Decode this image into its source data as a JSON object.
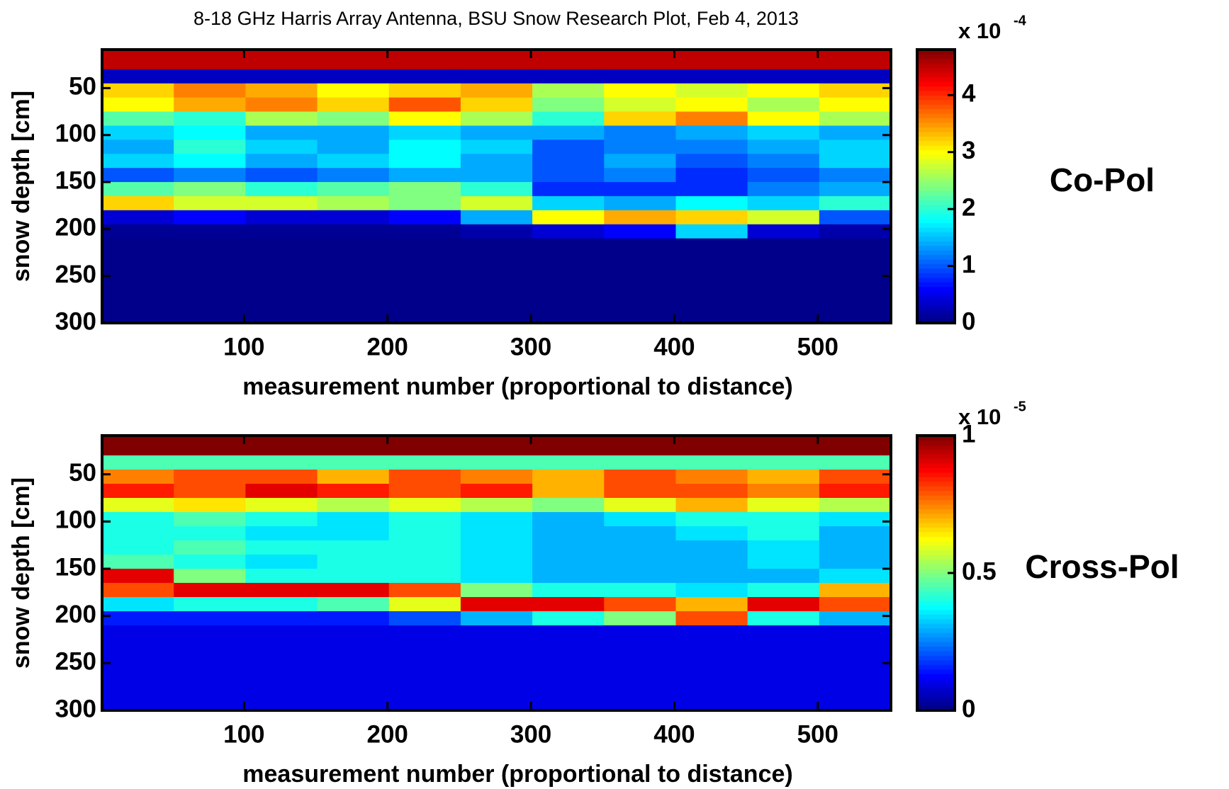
{
  "chart_data": [
    {
      "type": "heatmap",
      "title": "8-18 GHz Harris Array  Antenna, BSU Snow Research Plot, Feb 4, 2013",
      "xlabel": "measurement number (proportional to distance)",
      "ylabel": "snow depth [cm]",
      "side_label": "Co-Pol",
      "colorbar_multiplier": "x 10",
      "colorbar_exponent": "-4",
      "colormap": "jet",
      "clim": [
        0,
        4.8
      ],
      "colorbar_ticks": [
        0,
        1,
        2,
        3,
        4
      ],
      "xlim": [
        1,
        551
      ],
      "xticks": [
        100,
        200,
        300,
        400,
        500
      ],
      "ylim": [
        9,
        300
      ],
      "yticks": [
        50,
        100,
        150,
        200,
        250,
        300
      ],
      "y_reversed": true,
      "x_edges": [
        1,
        51,
        101,
        151,
        201,
        251,
        301,
        351,
        401,
        451,
        501,
        551
      ],
      "y_edges": [
        9,
        30,
        45,
        60,
        75,
        90,
        105,
        120,
        135,
        150,
        165,
        180,
        195,
        210,
        225,
        240,
        255,
        270,
        285,
        300
      ],
      "z": [
        [
          4.5,
          4.5,
          4.5,
          4.5,
          4.5,
          4.5,
          4.5,
          4.5,
          4.5,
          4.5,
          4.5
        ],
        [
          0.3,
          0.3,
          0.3,
          0.3,
          0.3,
          0.3,
          0.3,
          0.3,
          0.3,
          0.3,
          0.3
        ],
        [
          3.2,
          3.6,
          3.4,
          3.0,
          3.2,
          3.4,
          2.6,
          3.0,
          2.8,
          3.0,
          3.2
        ],
        [
          3.0,
          3.4,
          3.6,
          3.2,
          3.8,
          3.2,
          2.4,
          2.8,
          3.0,
          2.6,
          3.0
        ],
        [
          2.2,
          2.0,
          2.6,
          2.4,
          3.0,
          2.6,
          2.0,
          3.2,
          3.6,
          3.0,
          2.6
        ],
        [
          1.6,
          1.8,
          1.4,
          1.4,
          1.6,
          1.4,
          1.4,
          1.2,
          1.4,
          1.6,
          1.4
        ],
        [
          1.4,
          2.0,
          1.6,
          1.4,
          1.8,
          1.6,
          1.0,
          1.2,
          1.2,
          1.4,
          1.6
        ],
        [
          1.6,
          1.8,
          1.4,
          1.6,
          1.8,
          1.4,
          1.0,
          1.4,
          1.0,
          1.2,
          1.6
        ],
        [
          1.0,
          1.2,
          1.0,
          1.2,
          1.4,
          1.4,
          1.0,
          1.2,
          0.8,
          1.0,
          1.2
        ],
        [
          2.2,
          2.4,
          2.0,
          2.2,
          2.4,
          2.0,
          0.8,
          0.8,
          0.8,
          1.2,
          1.4
        ],
        [
          3.2,
          2.8,
          2.8,
          2.6,
          2.4,
          2.8,
          1.6,
          1.4,
          1.8,
          1.6,
          2.0
        ],
        [
          0.4,
          0.6,
          0.4,
          0.4,
          0.6,
          1.4,
          3.0,
          3.4,
          3.2,
          2.8,
          1.0
        ],
        [
          0.1,
          0.1,
          0.1,
          0.1,
          0.1,
          0.2,
          0.4,
          0.6,
          1.6,
          0.4,
          0.2
        ],
        [
          0.05,
          0.05,
          0.05,
          0.05,
          0.05,
          0.05,
          0.05,
          0.05,
          0.05,
          0.05,
          0.05
        ],
        [
          0.05,
          0.05,
          0.05,
          0.05,
          0.05,
          0.05,
          0.05,
          0.05,
          0.05,
          0.05,
          0.05
        ],
        [
          0.05,
          0.05,
          0.05,
          0.05,
          0.05,
          0.05,
          0.05,
          0.05,
          0.05,
          0.05,
          0.05
        ],
        [
          0.05,
          0.05,
          0.05,
          0.05,
          0.05,
          0.05,
          0.05,
          0.05,
          0.05,
          0.05,
          0.05
        ],
        [
          0.05,
          0.05,
          0.05,
          0.05,
          0.05,
          0.05,
          0.05,
          0.05,
          0.05,
          0.05,
          0.05
        ],
        [
          0.05,
          0.05,
          0.05,
          0.05,
          0.05,
          0.05,
          0.05,
          0.05,
          0.05,
          0.05,
          0.05
        ]
      ]
    },
    {
      "type": "heatmap",
      "xlabel": "measurement number (proportional to distance)",
      "ylabel": "snow depth [cm]",
      "side_label": "Cross-Pol",
      "colorbar_multiplier": "x 10",
      "colorbar_exponent": "-5",
      "colormap": "jet",
      "clim": [
        0,
        1
      ],
      "colorbar_ticks": [
        0,
        0.5,
        1
      ],
      "xlim": [
        1,
        551
      ],
      "xticks": [
        100,
        200,
        300,
        400,
        500
      ],
      "ylim": [
        9,
        300
      ],
      "yticks": [
        50,
        100,
        150,
        200,
        250,
        300
      ],
      "y_reversed": true,
      "x_edges": [
        1,
        51,
        101,
        151,
        201,
        251,
        301,
        351,
        401,
        451,
        501,
        551
      ],
      "y_edges": [
        9,
        30,
        45,
        60,
        75,
        90,
        105,
        120,
        135,
        150,
        165,
        180,
        195,
        210,
        225,
        240,
        255,
        270,
        285,
        300
      ],
      "z": [
        [
          1,
          1,
          1,
          1,
          1,
          1,
          1,
          1,
          1,
          1,
          1
        ],
        [
          0.45,
          0.45,
          0.45,
          0.45,
          0.45,
          0.45,
          0.45,
          0.45,
          0.45,
          0.45,
          0.45
        ],
        [
          0.75,
          0.8,
          0.8,
          0.7,
          0.8,
          0.75,
          0.7,
          0.8,
          0.75,
          0.7,
          0.8
        ],
        [
          0.85,
          0.8,
          0.9,
          0.85,
          0.8,
          0.85,
          0.7,
          0.8,
          0.8,
          0.75,
          0.85
        ],
        [
          0.6,
          0.65,
          0.6,
          0.55,
          0.6,
          0.55,
          0.5,
          0.6,
          0.7,
          0.6,
          0.55
        ],
        [
          0.4,
          0.45,
          0.4,
          0.35,
          0.4,
          0.35,
          0.3,
          0.35,
          0.4,
          0.4,
          0.35
        ],
        [
          0.4,
          0.4,
          0.35,
          0.35,
          0.4,
          0.35,
          0.3,
          0.3,
          0.35,
          0.4,
          0.3
        ],
        [
          0.4,
          0.45,
          0.4,
          0.4,
          0.4,
          0.35,
          0.3,
          0.3,
          0.3,
          0.35,
          0.3
        ],
        [
          0.45,
          0.4,
          0.35,
          0.4,
          0.4,
          0.35,
          0.3,
          0.3,
          0.3,
          0.35,
          0.3
        ],
        [
          0.9,
          0.5,
          0.4,
          0.4,
          0.4,
          0.35,
          0.3,
          0.3,
          0.3,
          0.3,
          0.35
        ],
        [
          0.8,
          0.9,
          0.9,
          0.9,
          0.8,
          0.5,
          0.4,
          0.4,
          0.35,
          0.4,
          0.7
        ],
        [
          0.35,
          0.4,
          0.4,
          0.45,
          0.6,
          0.9,
          0.9,
          0.8,
          0.7,
          0.9,
          0.8
        ],
        [
          0.15,
          0.15,
          0.15,
          0.15,
          0.2,
          0.3,
          0.4,
          0.5,
          0.8,
          0.4,
          0.3
        ],
        [
          0.1,
          0.1,
          0.1,
          0.1,
          0.1,
          0.1,
          0.1,
          0.1,
          0.1,
          0.1,
          0.1
        ],
        [
          0.1,
          0.1,
          0.1,
          0.1,
          0.1,
          0.1,
          0.1,
          0.1,
          0.1,
          0.1,
          0.1
        ],
        [
          0.1,
          0.1,
          0.1,
          0.1,
          0.1,
          0.1,
          0.1,
          0.1,
          0.1,
          0.1,
          0.1
        ],
        [
          0.1,
          0.1,
          0.1,
          0.1,
          0.1,
          0.1,
          0.1,
          0.1,
          0.1,
          0.1,
          0.1
        ],
        [
          0.1,
          0.1,
          0.1,
          0.1,
          0.1,
          0.1,
          0.1,
          0.1,
          0.1,
          0.1,
          0.1
        ],
        [
          0.1,
          0.1,
          0.1,
          0.1,
          0.1,
          0.1,
          0.1,
          0.1,
          0.1,
          0.1,
          0.1
        ]
      ]
    }
  ]
}
